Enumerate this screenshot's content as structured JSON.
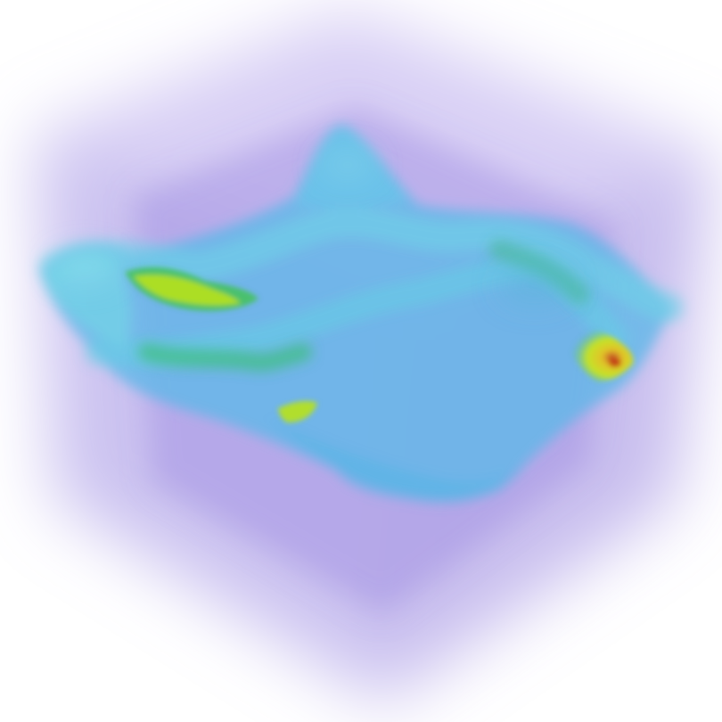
{
  "scene": {
    "background": "#ffffff",
    "colormap": {
      "low": "#9f8fe0",
      "mid_low": "#56b8e6",
      "mid": "#49c9d6",
      "mid_high": "#3fc07a",
      "high": "#c8e61e",
      "peak": "#e8c21a",
      "max": "#c23a1a"
    }
  }
}
